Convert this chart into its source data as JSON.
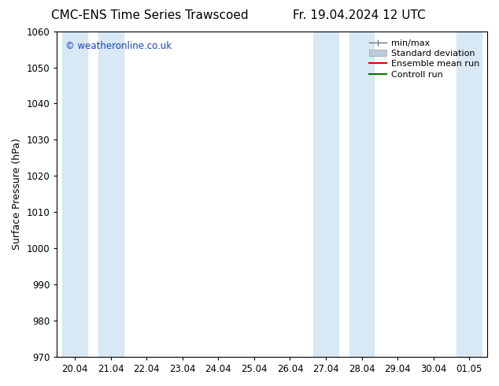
{
  "title": "CMC-ENS Time Series Trawscoed",
  "title2": "Fr. 19.04.2024 12 UTC",
  "ylabel": "Surface Pressure (hPa)",
  "ylim": [
    970,
    1060
  ],
  "yticks": [
    970,
    980,
    990,
    1000,
    1010,
    1020,
    1030,
    1040,
    1050,
    1060
  ],
  "xlabels": [
    "20.04",
    "21.04",
    "22.04",
    "23.04",
    "24.04",
    "25.04",
    "26.04",
    "27.04",
    "28.04",
    "29.04",
    "30.04",
    "01.05"
  ],
  "shaded_cols_indices": [
    0,
    1,
    7,
    8,
    11
  ],
  "shade_color": "#d8e8f5",
  "background_color": "#ffffff",
  "watermark": "© weatheronline.co.uk",
  "watermark_color": "#1a44bb",
  "legend_items": [
    "min/max",
    "Standard deviation",
    "Ensemble mean run",
    "Controll run"
  ],
  "minmax_color": "#777777",
  "stddev_color": "#bbccdd",
  "ensemble_color": "#dd0000",
  "control_color": "#007700",
  "title_fontsize": 11,
  "tick_fontsize": 8.5,
  "ylabel_fontsize": 9,
  "legend_fontsize": 8
}
